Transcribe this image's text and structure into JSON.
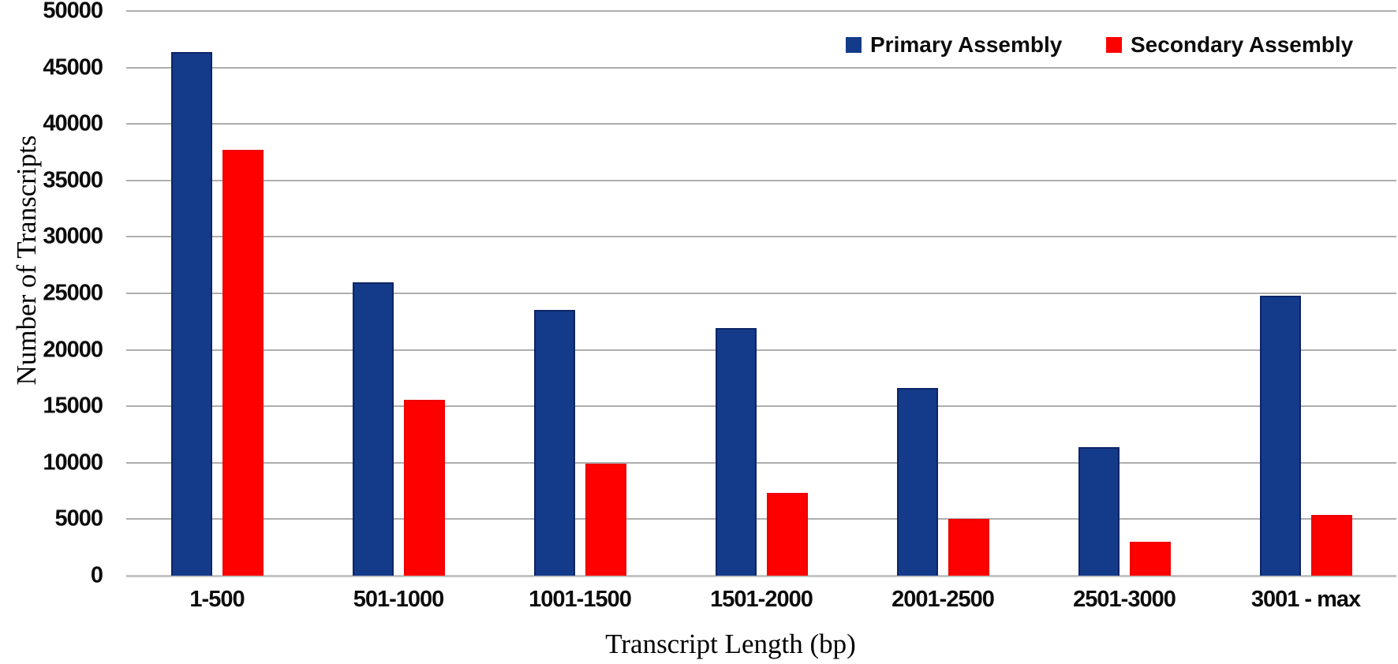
{
  "chart_data": {
    "type": "bar",
    "categories": [
      "1-500",
      "501-1000",
      "1001-1500",
      "1501-2000",
      "2001-2500",
      "2501-3000",
      "3001 - max"
    ],
    "series": [
      {
        "name": "Primary Assembly",
        "color": "#143a8a",
        "border_color": "#0d2566",
        "values": [
          46400,
          26000,
          23500,
          21900,
          16600,
          11400,
          24800
        ]
      },
      {
        "name": "Secondary Assembly",
        "color": "#fe0000",
        "border_color": "#ee0000",
        "values": [
          37700,
          15600,
          9900,
          7300,
          5000,
          3000,
          5400
        ]
      }
    ],
    "title": "",
    "xlabel": "Transcript Length (bp)",
    "ylabel": "Number of Transcripts",
    "ylim": [
      0,
      50000
    ],
    "ytick_step": 5000,
    "ytick_labels": [
      "0",
      "5000",
      "10000",
      "15000",
      "20000",
      "25000",
      "30000",
      "35000",
      "40000",
      "45000",
      "50000"
    ],
    "grid": true,
    "legend_position": "top-right"
  },
  "colors": {
    "gridline": "#aeaeae",
    "baseline": "#c4c4c4",
    "text": "#0c0c0c",
    "background": "#ffffff"
  }
}
